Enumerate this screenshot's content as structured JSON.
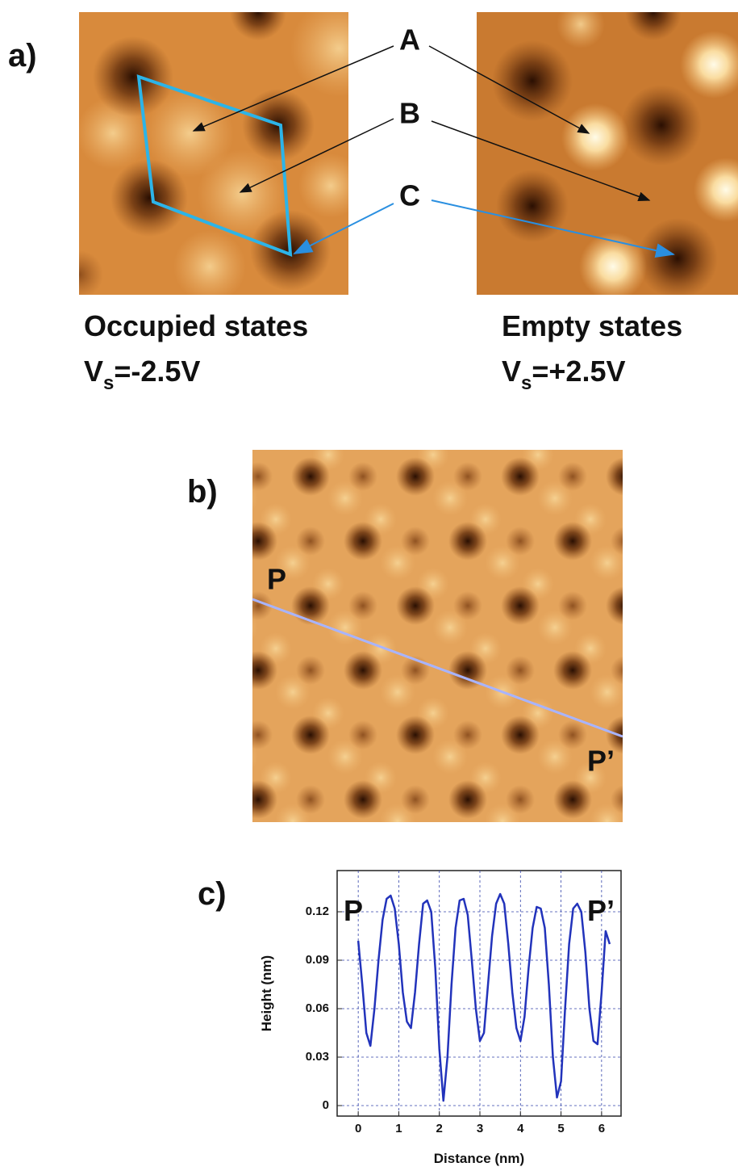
{
  "panels": {
    "a": {
      "label": "a)",
      "markers": [
        "A",
        "B",
        "C"
      ],
      "captions": [
        {
          "title": "Occupied states",
          "bias_symbol": "V",
          "bias_subscript": "s",
          "bias_value": "=-2.5V"
        },
        {
          "title": "Empty states",
          "bias_symbol": "V",
          "bias_subscript": "s",
          "bias_value": "=+2.5V"
        }
      ]
    },
    "b": {
      "label": "b)",
      "line_start": "P",
      "line_end": "P’"
    },
    "c": {
      "label": "c)"
    }
  },
  "chart_data": {
    "type": "line",
    "xlabel": "Distance (nm)",
    "ylabel": "Height (nm)",
    "annotations": [
      {
        "text": "P"
      },
      {
        "text": "P’"
      }
    ],
    "x": [
      0,
      0.1,
      0.2,
      0.3,
      0.4,
      0.5,
      0.6,
      0.7,
      0.8,
      0.9,
      1.0,
      1.1,
      1.2,
      1.3,
      1.4,
      1.5,
      1.6,
      1.7,
      1.8,
      1.9,
      2.0,
      2.1,
      2.2,
      2.3,
      2.4,
      2.5,
      2.6,
      2.7,
      2.8,
      2.9,
      3.0,
      3.1,
      3.2,
      3.3,
      3.4,
      3.5,
      3.6,
      3.7,
      3.8,
      3.9,
      4.0,
      4.1,
      4.2,
      4.3,
      4.4,
      4.5,
      4.6,
      4.7,
      4.8,
      4.9,
      5.0,
      5.1,
      5.2,
      5.3,
      5.4,
      5.5,
      5.6,
      5.7,
      5.8,
      5.9,
      6.0,
      6.1,
      6.2
    ],
    "series": [
      {
        "color": "#2233bb",
        "values": [
          0.102,
          0.075,
          0.045,
          0.037,
          0.06,
          0.09,
          0.115,
          0.128,
          0.13,
          0.122,
          0.1,
          0.07,
          0.052,
          0.048,
          0.07,
          0.1,
          0.125,
          0.127,
          0.12,
          0.085,
          0.035,
          0.003,
          0.03,
          0.075,
          0.11,
          0.127,
          0.128,
          0.118,
          0.09,
          0.06,
          0.04,
          0.045,
          0.075,
          0.105,
          0.125,
          0.131,
          0.125,
          0.1,
          0.07,
          0.048,
          0.04,
          0.055,
          0.085,
          0.11,
          0.123,
          0.122,
          0.11,
          0.075,
          0.03,
          0.005,
          0.015,
          0.06,
          0.1,
          0.122,
          0.125,
          0.12,
          0.095,
          0.06,
          0.04,
          0.038,
          0.07,
          0.108,
          0.1
        ]
      }
    ],
    "xlim": [
      -0.52,
      6.48
    ],
    "xticks": [
      0,
      1,
      2,
      3,
      4,
      5,
      6
    ],
    "ylim": [
      -0.0065,
      0.1455
    ],
    "yticks": [
      0,
      0.03,
      0.06,
      0.09,
      0.12
    ],
    "grid": true
  }
}
